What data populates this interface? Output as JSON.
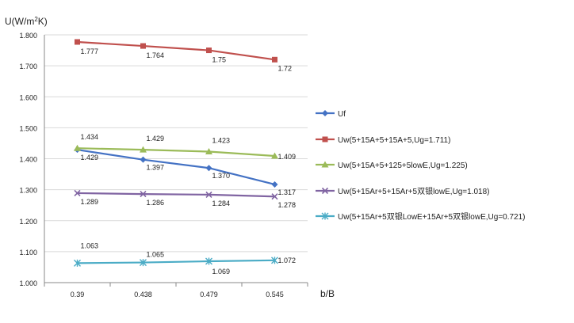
{
  "chart_data": {
    "type": "line",
    "ylabel_prefix": "U(W/m",
    "ylabel_sup": "2",
    "ylabel_suffix": "K)",
    "xlabel": "b/B",
    "categories": [
      "0.39",
      "0.438",
      "0.479",
      "0.545"
    ],
    "ylim": [
      1.0,
      1.8
    ],
    "yticks": [
      "1.000",
      "1.100",
      "1.200",
      "1.300",
      "1.400",
      "1.500",
      "1.600",
      "1.700",
      "1.800"
    ],
    "grid": true,
    "legend_position": "right",
    "series": [
      {
        "name": "Uf",
        "color": "#4472C4",
        "marker": "diamond",
        "values": [
          1.429,
          1.397,
          1.37,
          1.317
        ],
        "labels": [
          "1.429",
          "1.397",
          "1.370",
          "1.317"
        ]
      },
      {
        "name": "Uw(5+15A+5+15A+5,Ug=1.711)",
        "color": "#C0504D",
        "marker": "square",
        "values": [
          1.777,
          1.764,
          1.75,
          1.72
        ],
        "labels": [
          "1.777",
          "1.764",
          "1.75",
          "1.72"
        ]
      },
      {
        "name": "Uw(5+15A+5+125+5lowE,Ug=1.225)",
        "color": "#9BBB59",
        "marker": "triangle",
        "values": [
          1.434,
          1.429,
          1.423,
          1.409
        ],
        "labels": [
          "1.434",
          "1.429",
          "1.423",
          "1.409"
        ]
      },
      {
        "name": "Uw(5+15Ar+5+15Ar+5双银lowE,Ug=1.018)",
        "color": "#8064A2",
        "marker": "x",
        "values": [
          1.289,
          1.286,
          1.284,
          1.278
        ],
        "labels": [
          "1.289",
          "1.286",
          "1.284",
          "1.278"
        ]
      },
      {
        "name": "Uw(5+15Ar+5双银LowE+15Ar+5双银lowE,Ug=0.721)",
        "color": "#4BACC6",
        "marker": "star",
        "values": [
          1.063,
          1.065,
          1.069,
          1.072
        ],
        "labels": [
          "1.063",
          "1.065",
          "1.069",
          "1.072"
        ]
      }
    ]
  }
}
